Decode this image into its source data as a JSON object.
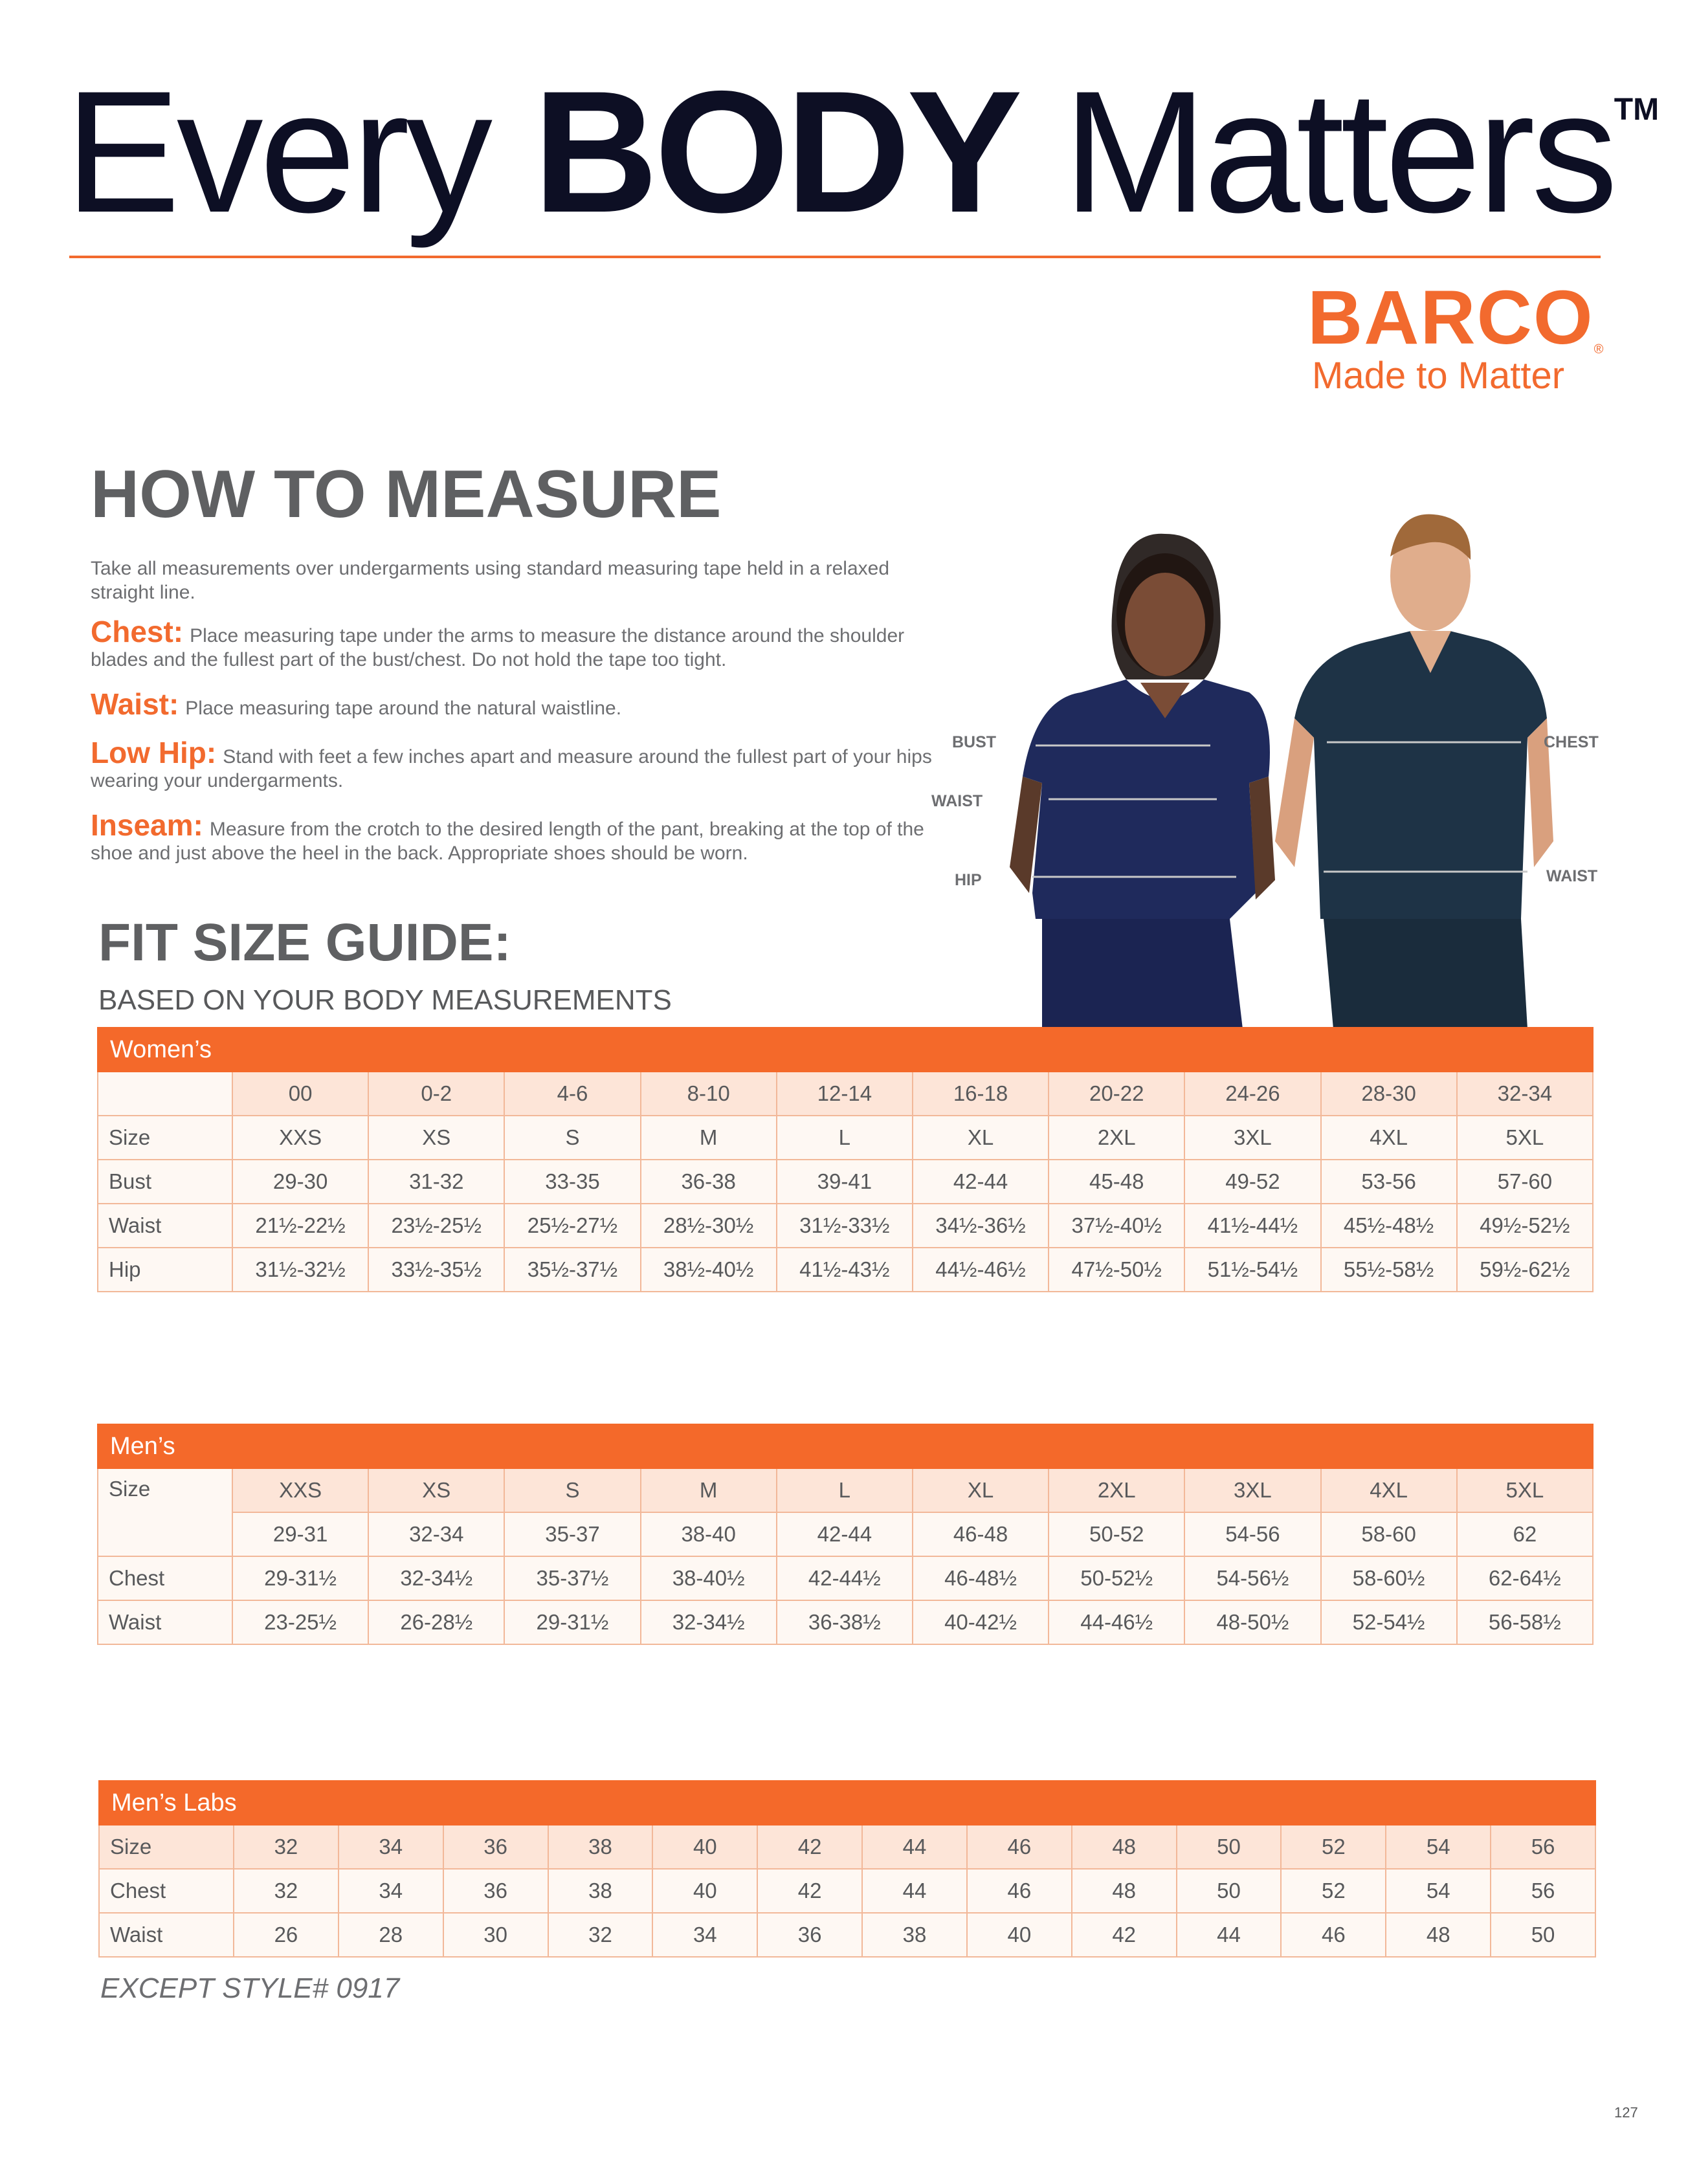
{
  "header": {
    "title_pre": "Every ",
    "title_bold": "BODY",
    "title_post": " Matters",
    "trademark": "TM"
  },
  "brand": {
    "name": "BARCO",
    "registered": "®",
    "tagline": "Made to Matter",
    "color": "#f26a2e"
  },
  "how_to_measure": {
    "heading": "HOW TO MEASURE",
    "intro": "Take all measurements over undergarments using standard measuring tape held in a relaxed straight line.",
    "items": [
      {
        "label": "Chest:",
        "text": "Place measuring tape under the arms to measure the distance around the shoulder blades and the fullest part of the bust/chest. Do not hold the tape too tight."
      },
      {
        "label": "Waist:",
        "text": "Place measuring tape around the natural waistline."
      },
      {
        "label": "Low Hip:",
        "text": "Stand with feet a few inches apart and measure around the fullest part of your hips wearing your undergarments."
      },
      {
        "label": "Inseam:",
        "text": "Measure from the crotch to the desired length of the pant, breaking at the top of the shoe and just above the heel in the back. Appropriate shoes should be worn."
      }
    ]
  },
  "figure_labels": {
    "bust": "BUST",
    "waist_w": "WAIST",
    "hip": "HIP",
    "chest": "CHEST",
    "waist_m": "WAIST"
  },
  "fit_guide": {
    "heading": "FIT SIZE GUIDE:",
    "subheading": "BASED ON YOUR BODY MEASUREMENTS"
  },
  "tables": [
    {
      "title": "Women’s",
      "rows": [
        {
          "label": "",
          "peach": true,
          "cells": [
            "00",
            "0-2",
            "4-6",
            "8-10",
            "12-14",
            "16-18",
            "20-22",
            "24-26",
            "28-30",
            "32-34"
          ]
        },
        {
          "label": "Size",
          "cells": [
            "XXS",
            "XS",
            "S",
            "M",
            "L",
            "XL",
            "2XL",
            "3XL",
            "4XL",
            "5XL"
          ]
        },
        {
          "label": "Bust",
          "cells": [
            "29-30",
            "31-32",
            "33-35",
            "36-38",
            "39-41",
            "42-44",
            "45-48",
            "49-52",
            "53-56",
            "57-60"
          ]
        },
        {
          "label": "Waist",
          "cells": [
            "21½-22½",
            "23½-25½",
            "25½-27½",
            "28½-30½",
            "31½-33½",
            "34½-36½",
            "37½-40½",
            "41½-44½",
            "45½-48½",
            "49½-52½"
          ]
        },
        {
          "label": "Hip",
          "cells": [
            "31½-32½",
            "33½-35½",
            "35½-37½",
            "38½-40½",
            "41½-43½",
            "44½-46½",
            "47½-50½",
            "51½-54½",
            "55½-58½",
            "59½-62½"
          ]
        }
      ]
    },
    {
      "title": "Men’s",
      "rows": [
        {
          "label": "Size",
          "peach": true,
          "span": 2,
          "cells": [
            "XXS",
            "XS",
            "S",
            "M",
            "L",
            "XL",
            "2XL",
            "3XL",
            "4XL",
            "5XL"
          ]
        },
        {
          "label": null,
          "cells": [
            "29-31",
            "32-34",
            "35-37",
            "38-40",
            "42-44",
            "46-48",
            "50-52",
            "54-56",
            "58-60",
            "62"
          ]
        },
        {
          "label": "Chest",
          "cells": [
            "29-31½",
            "32-34½",
            "35-37½",
            "38-40½",
            "42-44½",
            "46-48½",
            "50-52½",
            "54-56½",
            "58-60½",
            "62-64½"
          ]
        },
        {
          "label": "Waist",
          "cells": [
            "23-25½",
            "26-28½",
            "29-31½",
            "32-34½",
            "36-38½",
            "40-42½",
            "44-46½",
            "48-50½",
            "52-54½",
            "56-58½"
          ]
        }
      ]
    },
    {
      "title": "Men’s Labs",
      "rows": [
        {
          "label": "Size",
          "peach": true,
          "cells": [
            "32",
            "34",
            "36",
            "38",
            "40",
            "42",
            "44",
            "46",
            "48",
            "50",
            "52",
            "54",
            "56"
          ]
        },
        {
          "label": "Chest",
          "cells": [
            "32",
            "34",
            "36",
            "38",
            "40",
            "42",
            "44",
            "46",
            "48",
            "50",
            "52",
            "54",
            "56"
          ]
        },
        {
          "label": "Waist",
          "cells": [
            "26",
            "28",
            "30",
            "32",
            "34",
            "36",
            "38",
            "40",
            "42",
            "44",
            "46",
            "48",
            "50"
          ]
        }
      ]
    }
  ],
  "footnote": "EXCEPT STYLE# 0917",
  "page_number": "127",
  "colors": {
    "accent": "#f26a2e",
    "header_row": "#fde5d8",
    "cell": "#fef8f3",
    "border": "#f2b899",
    "scrubs": "#1f2a5c"
  }
}
